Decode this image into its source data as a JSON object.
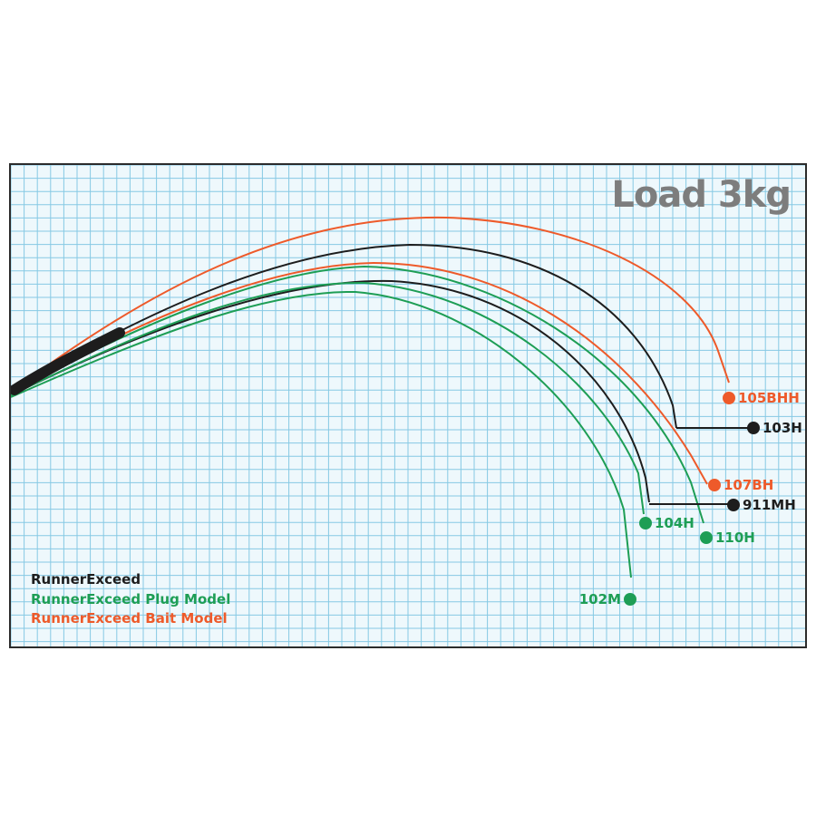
{
  "title": "Load 3kg",
  "colors": {
    "black": "#1d1d1d",
    "green": "#1e9e55",
    "orange": "#ee5a2a",
    "grid": "#86c9e4",
    "title": "#7d7d7d"
  },
  "legend": [
    {
      "text": "RunnerExceed",
      "color": "black"
    },
    {
      "text": "RunnerExceed Plug Model",
      "color": "green"
    },
    {
      "text": "RunnerExceed Bait Model",
      "color": "orange"
    }
  ],
  "rods": [
    {
      "label": "105BHH",
      "color": "orange"
    },
    {
      "label": "103H",
      "color": "black"
    },
    {
      "label": "107BH",
      "color": "orange"
    },
    {
      "label": "911MH",
      "color": "black"
    },
    {
      "label": "104H",
      "color": "green"
    },
    {
      "label": "110H",
      "color": "green"
    },
    {
      "label": "102M",
      "color": "green"
    }
  ]
}
